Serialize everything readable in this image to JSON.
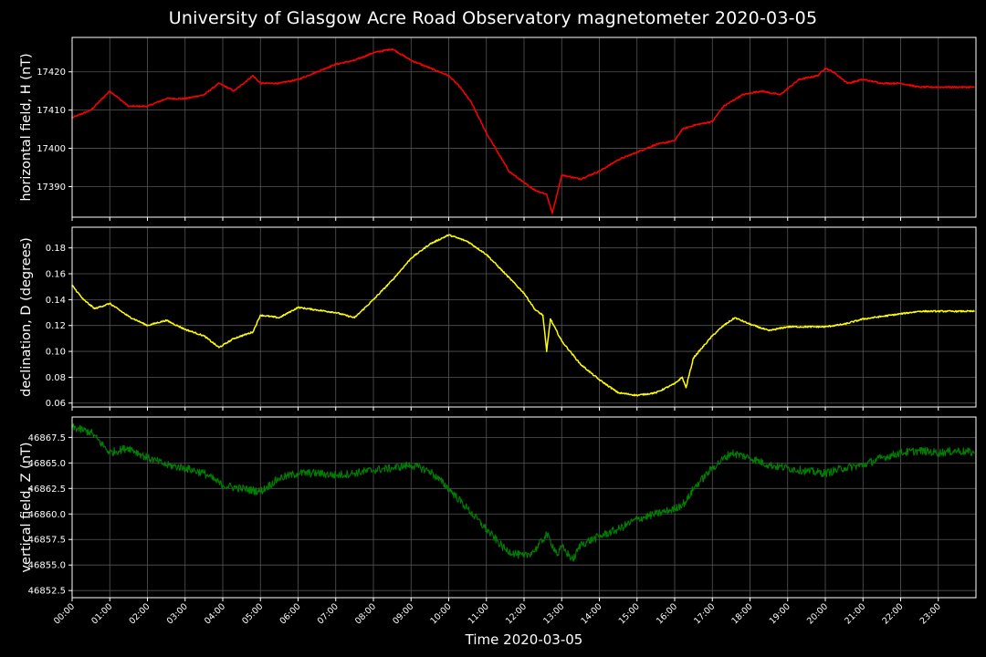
{
  "title": "University of Glasgow Acre Road Observatory magnetometer 2020-03-05",
  "chart_data": [
    {
      "type": "line",
      "ylabel": "horizontal field, H (nT)",
      "ylim": [
        17382,
        17429
      ],
      "yticks": [
        17390,
        17400,
        17410,
        17420
      ],
      "ytick_labels": [
        "17390",
        "17400",
        "17410",
        "17420"
      ],
      "color": "#ff0000",
      "grid": true,
      "x": [
        0,
        0.5,
        1,
        1.5,
        2,
        2.5,
        3,
        3.5,
        3.9,
        4.3,
        4.8,
        5,
        5.5,
        6,
        6.5,
        7,
        7.5,
        8,
        8.5,
        9,
        9.5,
        10,
        10.3,
        10.6,
        11,
        11.3,
        11.6,
        12,
        12.3,
        12.6,
        12.75,
        13,
        13.5,
        14,
        14.5,
        15,
        15.5,
        16,
        16.2,
        16.5,
        17,
        17.3,
        17.8,
        18.3,
        18.8,
        19.3,
        19.8,
        20,
        20.2,
        20.6,
        21,
        21.5,
        22,
        22.5,
        23,
        23.5,
        23.95
      ],
      "values": [
        17408,
        17410,
        17415,
        17411,
        17411,
        17413,
        17413,
        17414,
        17417,
        17415,
        17419,
        17417,
        17417,
        17418,
        17420,
        17422,
        17423,
        17425,
        17426,
        17423,
        17421,
        17419,
        17416,
        17412,
        17404,
        17399,
        17394,
        17391,
        17389,
        17388,
        17383,
        17393,
        17392,
        17394,
        17397,
        17399,
        17401,
        17402,
        17405,
        17406,
        17407,
        17411,
        17414,
        17415,
        17414,
        17418,
        17419,
        17421,
        17420,
        17417,
        17418,
        17417,
        17417,
        17416,
        17416,
        17416,
        17416
      ]
    },
    {
      "type": "line",
      "ylabel": "declination, D (degrees)",
      "ylim": [
        0.057,
        0.196
      ],
      "yticks": [
        0.06,
        0.08,
        0.1,
        0.12,
        0.14,
        0.16,
        0.18
      ],
      "ytick_labels": [
        "0.06",
        "0.08",
        "0.10",
        "0.12",
        "0.14",
        "0.16",
        "0.18"
      ],
      "color": "#ffff00",
      "grid": true,
      "x": [
        0,
        0.3,
        0.6,
        1,
        1.5,
        2,
        2.5,
        3,
        3.5,
        3.9,
        4.3,
        4.8,
        5,
        5.5,
        6,
        6.5,
        7,
        7.5,
        8,
        8.5,
        9,
        9.5,
        10,
        10.5,
        11,
        11.5,
        12,
        12.3,
        12.5,
        12.6,
        12.7,
        13,
        13.5,
        14,
        14.5,
        15,
        15.5,
        16,
        16.2,
        16.3,
        16.5,
        17,
        17.3,
        17.6,
        18,
        18.5,
        19,
        19.5,
        20,
        20.5,
        21,
        21.5,
        22,
        22.5,
        23,
        23.5,
        23.95
      ],
      "values": [
        0.151,
        0.14,
        0.133,
        0.137,
        0.127,
        0.12,
        0.124,
        0.117,
        0.112,
        0.103,
        0.11,
        0.115,
        0.128,
        0.126,
        0.134,
        0.132,
        0.13,
        0.126,
        0.14,
        0.155,
        0.172,
        0.183,
        0.19,
        0.185,
        0.175,
        0.16,
        0.145,
        0.132,
        0.128,
        0.1,
        0.125,
        0.108,
        0.09,
        0.078,
        0.068,
        0.066,
        0.068,
        0.075,
        0.08,
        0.072,
        0.095,
        0.112,
        0.12,
        0.126,
        0.121,
        0.116,
        0.119,
        0.119,
        0.119,
        0.121,
        0.125,
        0.127,
        0.129,
        0.131,
        0.131,
        0.131,
        0.131
      ]
    },
    {
      "type": "line",
      "ylabel": "vertical field, Z (nT)",
      "ylim": [
        46851.8,
        46869.5
      ],
      "yticks": [
        46852.5,
        46855,
        46857.5,
        46860,
        46862.5,
        46865,
        46867.5
      ],
      "ytick_labels": [
        "46852.5",
        "46855.0",
        "46857.5",
        "46860.0",
        "46862.5",
        "46865.0",
        "46867.5"
      ],
      "color": "#008000",
      "grid": true,
      "x": [
        0,
        0.5,
        1,
        1.5,
        2,
        2.5,
        3,
        3.5,
        4,
        4.5,
        5,
        5.5,
        6,
        6.5,
        7,
        7.5,
        8,
        8.5,
        9,
        9.5,
        10,
        10.5,
        11,
        11.5,
        12,
        12.3,
        12.6,
        12.9,
        13,
        13.3,
        13.5,
        14,
        14.5,
        15,
        15.5,
        16,
        16.3,
        16.5,
        17,
        17.5,
        18,
        18.5,
        19,
        19.5,
        20,
        20.5,
        21,
        21.5,
        22,
        22.5,
        23,
        23.5,
        23.95
      ],
      "values": [
        46868.5,
        46868,
        46866,
        46866.5,
        46865.5,
        46864.8,
        46864.5,
        46864,
        46862.8,
        46862.5,
        46862.2,
        46863.5,
        46864,
        46864,
        46863.8,
        46864,
        46864.3,
        46864.5,
        46864.8,
        46864.2,
        46862.5,
        46860.5,
        46858.5,
        46856.5,
        46855.8,
        46856.5,
        46858,
        46856,
        46856.8,
        46855.5,
        46857,
        46857.8,
        46858.5,
        46859.5,
        46860,
        46860.5,
        46861.2,
        46862.5,
        46864.5,
        46866,
        46865.5,
        46864.8,
        46864.5,
        46864.2,
        46864,
        46864.5,
        46864.8,
        46865.5,
        46866,
        46866.2,
        46866,
        46866.2,
        46866
      ]
    }
  ],
  "xaxis": {
    "label": "Time 2020-03-05",
    "xlim": [
      0,
      24
    ],
    "ticks": [
      0,
      1,
      2,
      3,
      4,
      5,
      6,
      7,
      8,
      9,
      10,
      11,
      12,
      13,
      14,
      15,
      16,
      17,
      18,
      19,
      20,
      21,
      22,
      23
    ],
    "tick_labels": [
      "00:00",
      "01:00",
      "02:00",
      "03:00",
      "04:00",
      "05:00",
      "06:00",
      "07:00",
      "08:00",
      "09:00",
      "10:00",
      "11:00",
      "12:00",
      "13:00",
      "14:00",
      "15:00",
      "16:00",
      "17:00",
      "18:00",
      "19:00",
      "20:00",
      "21:00",
      "22:00",
      "23:00"
    ]
  }
}
